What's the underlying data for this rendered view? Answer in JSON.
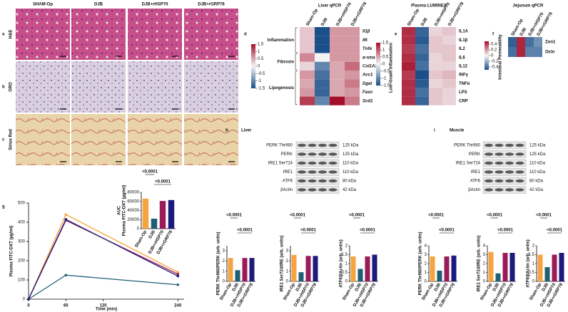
{
  "histology": {
    "columns": [
      "SHAM-Op",
      "DJB",
      "DJB+rHSP70",
      "DJB+rGRP78"
    ],
    "rows": [
      {
        "panel": "a",
        "label": "H&E"
      },
      {
        "panel": "b",
        "label": "ORO"
      },
      {
        "panel": "c",
        "label": "Sirius Red"
      }
    ]
  },
  "heatmaps": [
    {
      "panel": "d",
      "title": "Liver qPCR",
      "columns": [
        "Sham-Op",
        "DJB",
        "DJB+rHSP70",
        "DJB+rGRP78"
      ],
      "clim": [
        -1.5,
        1.5
      ],
      "cticks": [
        1.5,
        1,
        0.5,
        0,
        -0.5,
        -1,
        -1.5
      ],
      "groups": [
        {
          "label": "Inflammation",
          "rows": [
            "Il1β",
            "Il6",
            "Tnfα"
          ],
          "values": [
            [
              0.3,
              -1.5,
              0.6,
              0.6
            ],
            [
              0.3,
              -1.5,
              0.6,
              0.6
            ],
            [
              0.3,
              -1.5,
              0.6,
              0.6
            ]
          ]
        },
        {
          "label": "Fibrosis",
          "rows": [
            "α-sma",
            "Col1A1"
          ],
          "values": [
            [
              0.7,
              0,
              0.6,
              0.6
            ],
            [
              0.2,
              -1,
              0.5,
              0.9
            ]
          ]
        },
        {
          "label": "Lipogenesis",
          "rows": [
            "Acc1",
            "Dgat",
            "Fasn",
            "Scd1"
          ],
          "values": [
            [
              0.6,
              -1.2,
              0.5,
              0.6
            ],
            [
              0.5,
              -1.3,
              0.5,
              0.8
            ],
            [
              0.6,
              -1.3,
              0.5,
              0.6
            ],
            [
              1.2,
              -1,
              1.5,
              0.8
            ]
          ]
        }
      ]
    },
    {
      "panel": "e",
      "title": "Plasma LUMINEX",
      "side_label": "Low-Grade Inflammation",
      "columns": [
        "Sham-Op",
        "DJB",
        "DJB+rHSP70",
        "DJB+rGRP78"
      ],
      "clim": [
        -1.5,
        1.5
      ],
      "cticks": [
        1.5,
        1,
        0.5,
        0,
        -0.5,
        -1,
        -1.5
      ],
      "groups": [
        {
          "rows": [
            "IL1A",
            "IL1β",
            "IL2",
            "IL6",
            "IL12",
            "INFγ",
            "TNFα",
            "LPS",
            "CRP"
          ],
          "values": [
            [
              1.3,
              -1.3,
              0.2,
              0.3
            ],
            [
              1.3,
              -1.4,
              0.3,
              0.2
            ],
            [
              1.2,
              -1.2,
              0.3,
              0.3
            ],
            [
              1.3,
              -1.3,
              0.2,
              0.3
            ],
            [
              1.4,
              -1.2,
              0.2,
              0.2
            ],
            [
              1.2,
              -1.5,
              0.3,
              0.4
            ],
            [
              1.3,
              -1.4,
              0.2,
              0.3
            ],
            [
              1.3,
              -1.2,
              0.3,
              0.2
            ],
            [
              1.3,
              -1.3,
              0.3,
              0.2
            ]
          ]
        }
      ]
    },
    {
      "panel": "f",
      "title": "Jejunum qPCR",
      "side_label": "Intestinal Permeability",
      "columns": [
        "Sham-Op",
        "DJB",
        "DJB+rHSP70",
        "DJB+rGRP78"
      ],
      "clim": [
        -0.5,
        0.5
      ],
      "cticks": [
        0.4,
        0.2,
        0,
        -0.2,
        -0.4
      ],
      "groups": [
        {
          "rows": [
            "Zon1",
            "Ocln"
          ],
          "values": [
            [
              -0.45,
              0.45,
              -0.4,
              -0.3
            ],
            [
              -0.4,
              0.45,
              -0.35,
              -0.35
            ]
          ]
        }
      ]
    }
  ],
  "blots": [
    {
      "panel": "h",
      "title": "Liver",
      "rows": [
        {
          "name": "PERK Thr980",
          "size": "125 kDa"
        },
        {
          "name": "PERK",
          "size": "125 kDa"
        },
        {
          "name": "IRE1 Ser724",
          "size": "110 kDa"
        },
        {
          "name": "IRE1",
          "size": "110 kDa"
        },
        {
          "name": "ATF6",
          "size": "80 kDa"
        },
        {
          "name": "βActin",
          "size": "42 kDa"
        }
      ]
    },
    {
      "panel": "i",
      "title": "Muscle",
      "rows": [
        {
          "name": "PERK Thr980",
          "size": "125 kDa"
        },
        {
          "name": "PERK",
          "size": "125 kDa"
        },
        {
          "name": "IRE1 Ser724",
          "size": "110 kDa"
        },
        {
          "name": "IRE1",
          "size": "110 kDa"
        },
        {
          "name": "ATF6",
          "size": "80 kDa"
        },
        {
          "name": "βActin",
          "size": "42 kDa"
        }
      ]
    }
  ],
  "chart_data": [
    {
      "type": "line",
      "panel": "g",
      "xlabel": "Time (min)",
      "ylabel": "Plasma FITC-DXT (µg/ml)",
      "x": [
        0,
        60,
        240
      ],
      "xlim": [
        0,
        250
      ],
      "ylim": [
        0,
        500
      ],
      "xticks": [
        0,
        60,
        120,
        240
      ],
      "yticks": [
        0,
        100,
        200,
        300,
        400,
        500
      ],
      "series": [
        {
          "color": "#f7a440",
          "values": [
            0,
            440,
            140
          ]
        },
        {
          "color": "#1e5f74",
          "values": [
            0,
            125,
            75
          ]
        },
        {
          "color": "#9b1b59",
          "values": [
            0,
            410,
            130
          ]
        },
        {
          "color": "#1c1a7a",
          "values": [
            0,
            415,
            120
          ]
        }
      ]
    },
    {
      "type": "bar",
      "title": "AUC",
      "ylabel": "Plasma FITC-DXT (µg/ml)",
      "categories": [
        "Sham-Op",
        "DJB",
        "DJB+rHSP70",
        "DJB+rGRP78"
      ],
      "values": [
        66000,
        22000,
        61000,
        63000
      ],
      "colors": [
        "#f7a440",
        "#1e5f74",
        "#9b1b59",
        "#1c1a7a"
      ],
      "ylim": [
        0,
        80000
      ],
      "yticks": [
        0,
        20000,
        40000,
        60000,
        80000
      ],
      "significance": [
        "<0.0001",
        "<0.0001"
      ]
    },
    {
      "type": "bar",
      "ylabel": "PERK Thr980/PERK (arb. units)",
      "categories": [
        "Sham-Op",
        "DJB",
        "DJB+rHSP70",
        "DJB+rGRP78"
      ],
      "values": [
        2.3,
        1.1,
        2.3,
        2.3
      ],
      "colors": [
        "#f7a440",
        "#1e5f74",
        "#9b1b59",
        "#1c1a7a"
      ],
      "ylim": [
        0,
        3.5
      ],
      "yticks": [
        0,
        1,
        2,
        3
      ],
      "significance": [
        "<0.0001",
        "<0.0001"
      ]
    },
    {
      "type": "bar",
      "ylabel": "IRE1 Ser724/IRE (arb. units)",
      "categories": [
        "Sham-Op",
        "DJB",
        "DJB+rHSP70",
        "DJB+rGRP78"
      ],
      "values": [
        2.6,
        0.9,
        2.5,
        2.5
      ],
      "colors": [
        "#f7a440",
        "#1e5f74",
        "#9b1b59",
        "#1c1a7a"
      ],
      "ylim": [
        0,
        3.5
      ],
      "yticks": [
        0,
        1,
        2,
        3
      ],
      "significance": [
        "<0.0001",
        "<0.0001"
      ]
    },
    {
      "type": "bar",
      "ylabel": "ATF6/βActin (arb. units)",
      "categories": [
        "Sham-Op",
        "DJB",
        "DJB+rHSP70",
        "DJB+rGRP78"
      ],
      "values": [
        1.4,
        0.7,
        1.4,
        1.5
      ],
      "colors": [
        "#f7a440",
        "#1e5f74",
        "#9b1b59",
        "#1c1a7a"
      ],
      "ylim": [
        0,
        2
      ],
      "yticks": [
        0,
        0.5,
        1,
        1.5,
        2
      ],
      "significance": [
        "<0.0001",
        "<0.0001"
      ]
    },
    {
      "type": "bar",
      "ylabel": "PERK Thr980/PERK (arb. units)",
      "categories": [
        "Sham-Op",
        "DJB",
        "DJB+rHSP70",
        "DJB+rGRP78"
      ],
      "values": [
        2.8,
        1.2,
        2.8,
        2.9
      ],
      "colors": [
        "#f7a440",
        "#1e5f74",
        "#9b1b59",
        "#1c1a7a"
      ],
      "ylim": [
        0,
        4
      ],
      "yticks": [
        0,
        1,
        2,
        3,
        4
      ],
      "significance": [
        "<0.0001",
        "<0.0001"
      ]
    },
    {
      "type": "bar",
      "ylabel": "IRE1 Ser724/IRE (arb. units)",
      "categories": [
        "Sham-Op",
        "DJB",
        "DJB+rHSP70",
        "DJB+rGRP78"
      ],
      "values": [
        3.3,
        0.9,
        3.2,
        3.2
      ],
      "colors": [
        "#f7a440",
        "#1e5f74",
        "#9b1b59",
        "#1c1a7a"
      ],
      "ylim": [
        0,
        4
      ],
      "yticks": [
        0,
        1,
        2,
        3,
        4
      ],
      "significance": [
        "<0.0001",
        "<0.0001"
      ]
    },
    {
      "type": "bar",
      "ylabel": "ATF6/βActin (arb. units)",
      "categories": [
        "Sham-Op",
        "DJB",
        "DJB+rHSP70",
        "DJB+rGRP78"
      ],
      "values": [
        1.5,
        0.8,
        1.5,
        1.6
      ],
      "colors": [
        "#f7a440",
        "#1e5f74",
        "#9b1b59",
        "#1c1a7a"
      ],
      "ylim": [
        0,
        2
      ],
      "yticks": [
        0,
        0.5,
        1,
        1.5,
        2
      ],
      "significance": [
        "<0.0001",
        "<0.0001"
      ]
    }
  ]
}
